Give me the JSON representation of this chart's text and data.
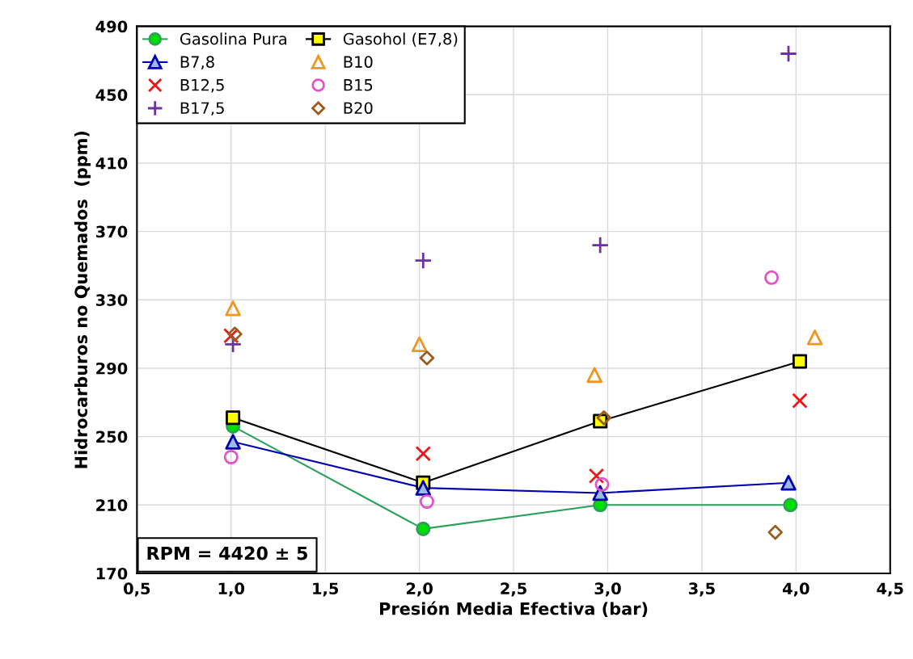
{
  "chart_data": {
    "type": "scatter",
    "xlabel": "Presión Media Efectiva (bar)",
    "ylabel": "Hidrocarburos no Quemados  (ppm)",
    "xlim": [
      0.5,
      4.5
    ],
    "xticks": [
      {
        "value": 0.5,
        "label": "0,5"
      },
      {
        "value": 1.0,
        "label": "1,0"
      },
      {
        "value": 1.5,
        "label": "1,5"
      },
      {
        "value": 2.0,
        "label": "2,0"
      },
      {
        "value": 2.5,
        "label": "2,5"
      },
      {
        "value": 3.0,
        "label": "3,0"
      },
      {
        "value": 3.5,
        "label": "3,5"
      },
      {
        "value": 4.0,
        "label": "4,0"
      },
      {
        "value": 4.5,
        "label": "4,5"
      }
    ],
    "ylim": [
      170,
      490
    ],
    "yticks": [
      170,
      210,
      250,
      290,
      330,
      370,
      410,
      450,
      490
    ],
    "grid": true,
    "legend": "top left",
    "annotations": [
      "RPM = 4420 ± 5"
    ],
    "series": [
      {
        "name": "Gasolina Pura",
        "type": "line",
        "marker": "circle",
        "color": "#2ca05a",
        "colors": [
          "#00e000",
          "#00e000",
          "#00e000",
          "#00e000"
        ],
        "x": [
          1.01,
          2.02,
          2.96,
          3.97
        ],
        "values": [
          256,
          196,
          210,
          210
        ]
      },
      {
        "name": "Gasohol (E7,8)",
        "type": "line",
        "marker": "square",
        "color": "#000000",
        "colors": [
          "#ffff00",
          "#ffff00",
          "#ffff00",
          "#ffff00"
        ],
        "x": [
          1.01,
          2.02,
          2.96,
          4.02
        ],
        "values": [
          261,
          223,
          259,
          294
        ]
      },
      {
        "name": "B7,8",
        "type": "line",
        "marker": "triangle",
        "color": "#0000b0",
        "colors": [
          "#9db9e8",
          "#9db9e8",
          "#9db9e8",
          "#9db9e8"
        ],
        "x": [
          1.01,
          2.02,
          2.96,
          3.96
        ],
        "values": [
          247,
          220,
          217,
          223
        ]
      },
      {
        "name": "B10",
        "marker": "triangle",
        "color": "#f0961e",
        "x": [
          1.01,
          2.0,
          2.93,
          4.1
        ],
        "values": [
          325,
          304,
          286,
          308
        ]
      },
      {
        "name": "B12,5",
        "marker": "cross",
        "color": "#f01414",
        "x": [
          1.0,
          2.02,
          2.94,
          4.02
        ],
        "values": [
          309,
          240,
          227,
          271
        ]
      },
      {
        "name": "B15",
        "marker": "circle",
        "color": "#e650c8",
        "x": [
          1.0,
          2.04,
          2.97,
          3.87
        ],
        "values": [
          238,
          212,
          222,
          343
        ]
      },
      {
        "name": "B17,5",
        "marker": "plus",
        "color": "#7030a0",
        "x": [
          1.01,
          2.02,
          2.96,
          3.96
        ],
        "values": [
          304,
          353,
          362,
          474
        ]
      },
      {
        "name": "B20",
        "marker": "diamond",
        "color": "#9c5a1e",
        "x": [
          1.02,
          2.04,
          2.98,
          3.89
        ],
        "values": [
          310,
          296,
          261,
          194
        ]
      }
    ]
  }
}
